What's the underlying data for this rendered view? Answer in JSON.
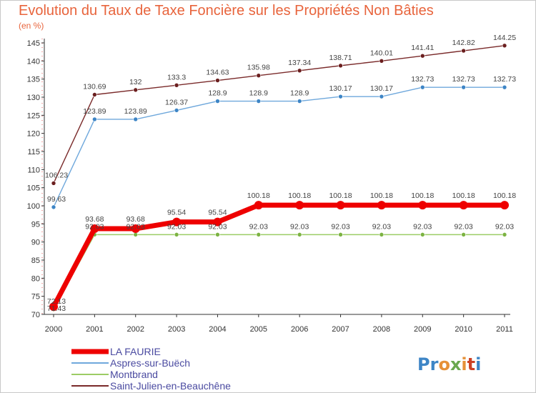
{
  "chart_data": {
    "type": "line",
    "title": "Evolution du Taux de Taxe Foncière sur les Propriétés Non Bâties",
    "ylabel": "(en %)",
    "xlabel": "",
    "x": [
      "2000",
      "2001",
      "2002",
      "2003",
      "2004",
      "2005",
      "2006",
      "2007",
      "2008",
      "2009",
      "2010",
      "2011"
    ],
    "ylim": [
      70,
      145
    ],
    "yticks": [
      70,
      75,
      80,
      85,
      90,
      95,
      100,
      105,
      110,
      115,
      120,
      125,
      130,
      135,
      140,
      145
    ],
    "grid": false,
    "series": [
      {
        "name": "Saint-Julien-en-Beauchêne",
        "color": "#7a2a2a",
        "marker": "#6b1f1f",
        "values": [
          106.23,
          130.69,
          132,
          133.3,
          134.63,
          135.98,
          137.34,
          138.71,
          140.01,
          141.41,
          142.82,
          144.25
        ],
        "labels": [
          "106.23",
          "130.69",
          "132",
          "133.3",
          "134.63",
          "135.98",
          "137.34",
          "138.71",
          "140.01",
          "141.41",
          "142.82",
          "144.25"
        ]
      },
      {
        "name": "Aspres-sur-Buëch",
        "color": "#6fa8dc",
        "marker": "#3d85c6",
        "values": [
          99.63,
          123.89,
          123.89,
          126.37,
          128.9,
          128.9,
          128.9,
          130.17,
          130.17,
          132.73,
          132.73,
          132.73
        ],
        "labels": [
          "99.63",
          "123.89",
          "123.89",
          "126.37",
          "128.9",
          "128.9",
          "128.9",
          "130.17",
          "130.17",
          "132.73",
          "132.73",
          "132.73"
        ]
      },
      {
        "name": "Montbrand",
        "color": "#9ccc65",
        "marker": "#7cb342",
        "values": [
          71.43,
          92.03,
          92.03,
          92.03,
          92.03,
          92.03,
          92.03,
          92.03,
          92.03,
          92.03,
          92.03,
          92.03
        ],
        "labels": [
          "71.43",
          "92.03",
          "92.03",
          "92.03",
          "92.03",
          "92.03",
          "92.03",
          "92.03",
          "92.03",
          "92.03",
          "92.03",
          "92.03"
        ]
      },
      {
        "name": "LA FAURIE",
        "color": "#ee0000",
        "marker": "#ee0000",
        "values": [
          72.13,
          93.68,
          93.68,
          95.54,
          95.54,
          100.18,
          100.18,
          100.18,
          100.18,
          100.18,
          100.18,
          100.18
        ],
        "labels": [
          "72.13",
          "93.68",
          "93.68",
          "95.54",
          "95.54",
          "100.18",
          "100.18",
          "100.18",
          "100.18",
          "100.18",
          "100.18",
          "100.18"
        ]
      }
    ],
    "legend": {
      "placement": "bottom-left",
      "entries": [
        "LA FAURIE",
        "Aspres-sur-Buëch",
        "Montbrand",
        "Saint-Julien-en-Beauchêne"
      ]
    }
  },
  "watermark": "Proxiti"
}
